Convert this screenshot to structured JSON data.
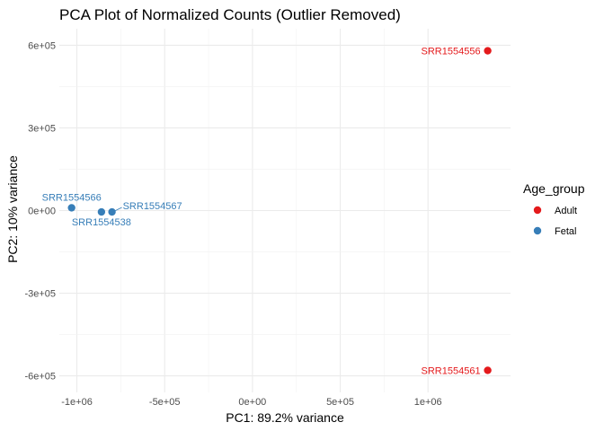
{
  "chart_data": {
    "type": "scatter",
    "title": "PCA Plot of Normalized Counts (Outlier Removed)",
    "xlabel": "PC1: 89.2% variance",
    "ylabel": "PC2: 10% variance",
    "xlim": [
      -1100000,
      1470000
    ],
    "ylim": [
      -660000,
      660000
    ],
    "x_ticks": [
      {
        "value": -1000000,
        "label": "-1e+06"
      },
      {
        "value": -500000,
        "label": "-5e+05"
      },
      {
        "value": 0,
        "label": "0e+00"
      },
      {
        "value": 500000,
        "label": "5e+05"
      },
      {
        "value": 1000000,
        "label": "1e+06"
      }
    ],
    "y_ticks": [
      {
        "value": 600000,
        "label": "6e+05"
      },
      {
        "value": 300000,
        "label": "3e+05"
      },
      {
        "value": 0,
        "label": "0e+00"
      },
      {
        "value": -300000,
        "label": "-3e+05"
      },
      {
        "value": -600000,
        "label": "-6e+05"
      }
    ],
    "grid": true,
    "legend": {
      "title": "Age_group",
      "placement": "right",
      "entries": [
        {
          "label": "Adult",
          "color": "#E41A1C"
        },
        {
          "label": "Fetal",
          "color": "#377EB8"
        }
      ]
    },
    "points": [
      {
        "x": 1340000,
        "y": 580000,
        "group": "Adult",
        "label": "SRR1554556",
        "label_anchor": "left"
      },
      {
        "x": 1340000,
        "y": -580000,
        "group": "Adult",
        "label": "SRR1554561",
        "label_anchor": "left"
      },
      {
        "x": -1030000,
        "y": 10000,
        "group": "Fetal",
        "label": "SRR1554566",
        "label_anchor": "above"
      },
      {
        "x": -860000,
        "y": -5000,
        "group": "Fetal",
        "label": "SRR1554538",
        "label_anchor": "below"
      },
      {
        "x": -800000,
        "y": -5000,
        "group": "Fetal",
        "label": "SRR1554567",
        "label_anchor": "right"
      }
    ]
  }
}
